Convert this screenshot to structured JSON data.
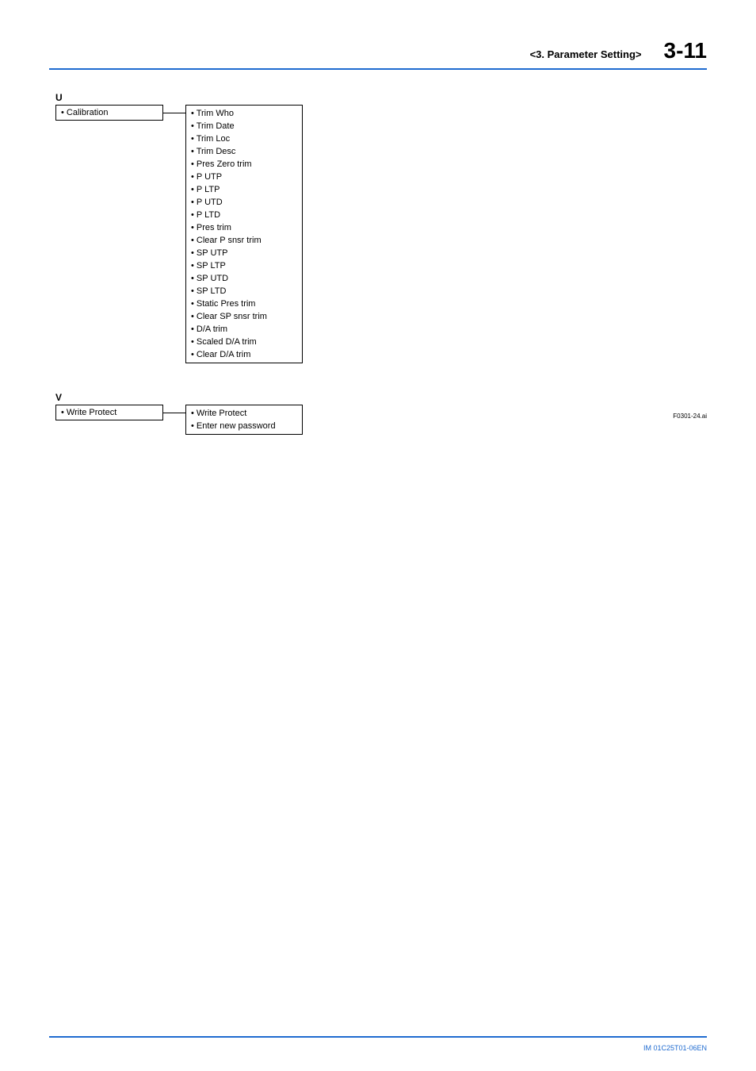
{
  "header": {
    "section": "<3.  Parameter Setting>",
    "pagenum": "3-11"
  },
  "colors": {
    "accent": "#1f6bd0",
    "text": "#000000",
    "background": "#ffffff"
  },
  "blockU": {
    "letter": "U",
    "left": "• Calibration",
    "right": [
      "• Trim Who",
      "• Trim Date",
      "• Trim Loc",
      "• Trim Desc",
      "• Pres Zero trim",
      "• P UTP",
      "• P LTP",
      "• P UTD",
      "• P LTD",
      "• Pres trim",
      "• Clear P snsr trim",
      "• SP UTP",
      "• SP LTP",
      "• SP UTD",
      "• SP LTD",
      "• Static Pres trim",
      "• Clear SP snsr trim",
      "• D/A trim",
      "• Scaled D/A trim",
      "• Clear D/A trim"
    ]
  },
  "blockV": {
    "letter": "V",
    "left": "• Write Protect",
    "right": [
      "• Write Protect",
      "• Enter new password"
    ]
  },
  "figref": "F0301-24.ai",
  "footer": "IM 01C25T01-06EN"
}
